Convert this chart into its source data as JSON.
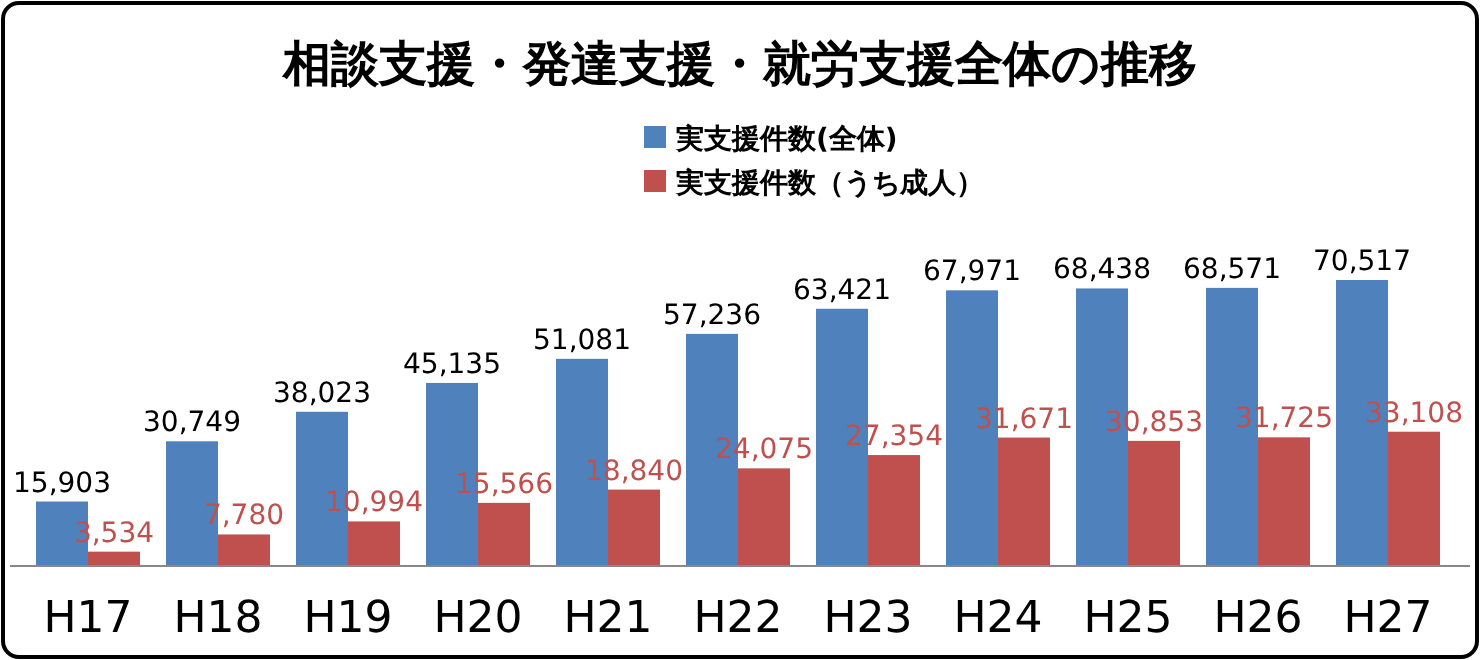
{
  "chart_data": {
    "type": "bar",
    "title": "相談支援・発達支援・就労支援全体の推移",
    "categories": [
      "H17",
      "H18",
      "H19",
      "H20",
      "H21",
      "H22",
      "H23",
      "H24",
      "H25",
      "H26",
      "H27"
    ],
    "series": [
      {
        "name": "実支援件数(全体)",
        "color": "#4f81bd",
        "values": [
          15903,
          30749,
          38023,
          45135,
          51081,
          57236,
          63421,
          67971,
          68438,
          68571,
          70517
        ],
        "value_labels": [
          "15,903",
          "30,749",
          "38,023",
          "45,135",
          "51,081",
          "57,236",
          "63,421",
          "67,971",
          "68,438",
          "68,571",
          "70,517"
        ]
      },
      {
        "name": "実支援件数（うち成人）",
        "color": "#c0504d",
        "values": [
          3534,
          7780,
          10994,
          15566,
          18840,
          24075,
          27354,
          31671,
          30853,
          31725,
          33108
        ],
        "value_labels": [
          "3,534",
          "7,780",
          "10,994",
          "15,566",
          "18,840",
          "24,075",
          "27,354",
          "31,671",
          "30,853",
          "31,725",
          "33,108"
        ]
      }
    ],
    "legend": "top",
    "tick_labels": "x"
  }
}
